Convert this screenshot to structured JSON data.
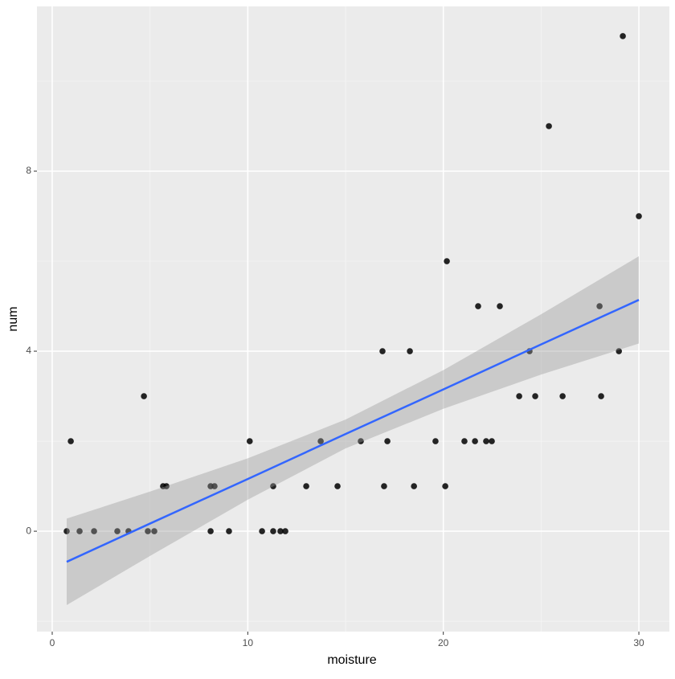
{
  "chart_data": {
    "type": "scatter",
    "x_label": "moisture",
    "y_label": "num",
    "x": [
      0.74,
      0.95,
      1.4,
      2.14,
      3.33,
      3.9,
      4.69,
      4.89,
      5.22,
      5.67,
      5.84,
      8.1,
      8.1,
      8.3,
      9.04,
      10.1,
      10.73,
      11.3,
      11.3,
      11.67,
      11.92,
      12.99,
      13.73,
      14.59,
      15.78,
      16.89,
      16.97,
      17.14,
      18.29,
      18.5,
      19.6,
      20.1,
      20.18,
      21.08,
      21.62,
      21.78,
      22.19,
      22.48,
      22.89,
      23.88,
      24.41,
      24.7,
      25.4,
      26.1,
      27.99,
      28.07,
      28.98,
      29.18,
      30.0
    ],
    "values": [
      0,
      2,
      0,
      0,
      0,
      0,
      3,
      0,
      0,
      1,
      1,
      1,
      0,
      1,
      0,
      2,
      0,
      1,
      0,
      0,
      0,
      1,
      2,
      1,
      2,
      4,
      1,
      2,
      4,
      1,
      2,
      1,
      6,
      2,
      2,
      5,
      2,
      2,
      5,
      3,
      4,
      3,
      9,
      3,
      5,
      3,
      4,
      11,
      7
    ],
    "color": "#000000",
    "fit": {
      "color": "#3366ff",
      "band_color": "#999999",
      "x": [
        0.74,
        5,
        10,
        15,
        20,
        25,
        30
      ],
      "y": [
        -0.68,
        0.17,
        1.16,
        2.16,
        3.15,
        4.15,
        5.14
      ],
      "lower": [
        -1.64,
        -0.55,
        0.7,
        1.84,
        2.72,
        3.48,
        4.17
      ],
      "upper": [
        0.28,
        0.88,
        1.62,
        2.48,
        3.58,
        4.82,
        6.11
      ]
    },
    "xlim": [
      -0.78,
      31.56
    ],
    "ylim": [
      -2.23,
      11.66
    ],
    "xticks": [
      0,
      10,
      20,
      30
    ],
    "yticks": [
      0,
      4,
      8
    ],
    "minor_xticks": [
      5,
      15,
      25
    ],
    "minor_yticks": [
      -2,
      2,
      6,
      10
    ],
    "grid": true
  }
}
